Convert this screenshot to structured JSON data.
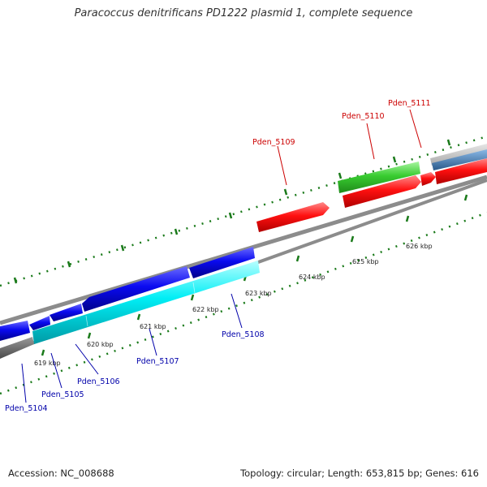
{
  "title": "Paracoccus denitrificans PD1222 plasmid 1, complete sequence",
  "accession": "Accession: NC_008688",
  "topology": "Topology: circular; Length: 653,815 bp; Genes: 616",
  "scale": {
    "ticks": [
      "619 kbp",
      "620 kbp",
      "621 kbp",
      "622 kbp",
      "623 kbp",
      "624 kbp",
      "625 kbp",
      "626 kbp"
    ]
  },
  "genes": [
    {
      "name": "Pden_5104",
      "color": "#0000aa"
    },
    {
      "name": "Pden_5105",
      "color": "#0000aa"
    },
    {
      "name": "Pden_5106",
      "color": "#0000aa"
    },
    {
      "name": "Pden_5107",
      "color": "#0000aa"
    },
    {
      "name": "Pden_5108",
      "color": "#0000aa"
    },
    {
      "name": "Pden_5109",
      "color": "#cc0000"
    },
    {
      "name": "Pden_5110",
      "color": "#cc0000"
    },
    {
      "name": "Pden_5111",
      "color": "#cc0000"
    }
  ],
  "colors": {
    "backbone": "#8c8c8c",
    "forward_cds": "#ff0000",
    "reverse_cds": "#0000ee",
    "cyan_feature": "#00e6ee",
    "green_feature": "#33cc33",
    "steelblue_feature": "#4682b4",
    "tick_green": "#1a7a1a"
  }
}
